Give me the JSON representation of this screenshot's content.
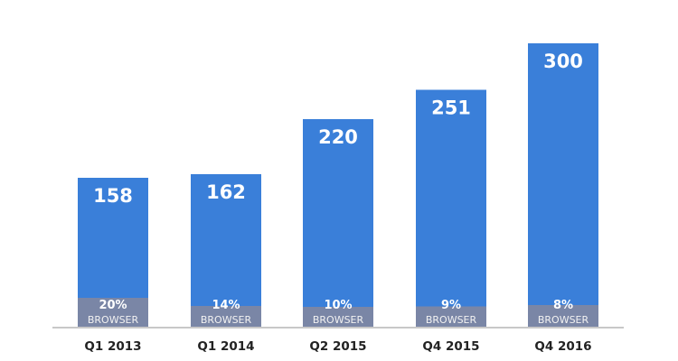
{
  "chart_data": {
    "type": "bar",
    "categories": [
      "Q1 2013",
      "Q1 2014",
      "Q2 2015",
      "Q4 2015",
      "Q4 2016"
    ],
    "values": [
      158,
      162,
      220,
      251,
      300
    ],
    "value_labels": [
      "158",
      "162",
      "220",
      "251",
      "300"
    ],
    "browser_share": [
      20,
      14,
      10,
      9,
      8
    ],
    "browser_share_labels": [
      "20%",
      "14%",
      "10%",
      "9%",
      "8%"
    ],
    "segment_label": "BROWSER",
    "title": "",
    "xlabel": "",
    "ylabel": "",
    "ylim": [
      0,
      300
    ],
    "grid": false,
    "colors": {
      "bar": "#3a7fd9",
      "segment": "#7a86a6",
      "baseline": "#c8c8c8"
    }
  }
}
